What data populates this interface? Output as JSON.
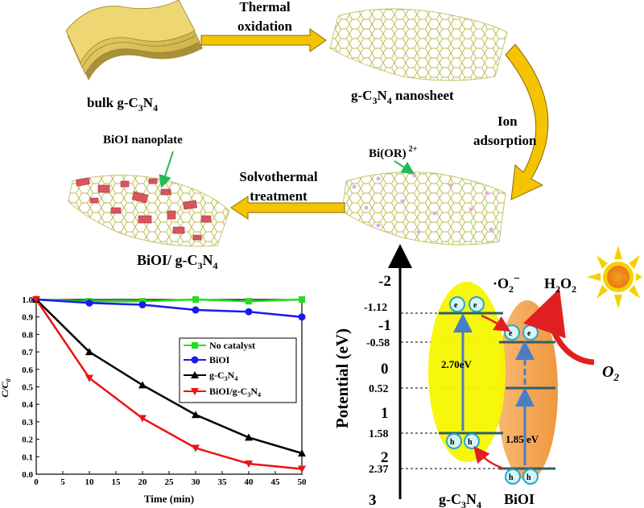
{
  "scheme": {
    "bulk_label": "bulk g-C",
    "bulk_sub1": "3",
    "bulk_mid": "N",
    "bulk_sub2": "4",
    "step1_line1": "Thermal",
    "step1_line2": "oxidation",
    "nanosheet_label": "g-C",
    "nanosheet_sub1": "3",
    "nanosheet_mid": "N",
    "nanosheet_sub2": "4",
    "nanosheet_tail": " nanosheet",
    "step2_line1": "Ion",
    "step2_line2": "adsorption",
    "ion_label": "Bi(OR)",
    "ion_charge": "2+",
    "step3_line1": "Solvothermal",
    "step3_line2": "treatment",
    "nanoplate_label": "BiOI nanoplate",
    "composite_label": "BiOI/ g-C",
    "composite_sub1": "3",
    "composite_mid": "N",
    "composite_sub2": "4"
  },
  "band_diagram": {
    "axis_label": "Potential (eV)",
    "axis_ticks": [
      "-2",
      "-1",
      "0",
      "1",
      "2",
      "3"
    ],
    "level_labels": [
      "-1.12",
      "-0.58",
      "0.52",
      "1.58",
      "2.37"
    ],
    "gcn_gap": "2.70eV",
    "bioi_gap": "1.85 eV",
    "electron": "e",
    "hole": "h",
    "superoxide": "·O",
    "superoxide_sub": "2",
    "superoxide_sup": "−",
    "peroxide": "H",
    "peroxide_sub1": "2",
    "peroxide_mid": "O",
    "peroxide_sub2": "2",
    "oxygen": "O",
    "oxygen_sub": "2",
    "gcn_name": "g-C",
    "gcn_sub1": "3",
    "gcn_mid": "N",
    "gcn_sub2": "4",
    "bioi_name": "BiOI",
    "colors": {
      "gcn": "#f7f700",
      "bioi": "#f4a455",
      "arrow": "#e02020",
      "band": "#2f5f6a",
      "circle": "#22aacc"
    }
  },
  "chart_data": {
    "type": "line",
    "xlabel": "Time (min)",
    "ylabel": "C/C",
    "ylabel_sub": "0",
    "x": [
      0,
      10,
      20,
      30,
      40,
      50
    ],
    "xlim": [
      0,
      50
    ],
    "ylim": [
      0.0,
      1.0
    ],
    "xticks": [
      "0",
      "5",
      "10",
      "15",
      "20",
      "25",
      "30",
      "35",
      "40",
      "45",
      "50"
    ],
    "yticks": [
      "0.0",
      "0.1",
      "0.2",
      "0.3",
      "0.4",
      "0.5",
      "0.6",
      "0.7",
      "0.8",
      "0.9",
      "1.0"
    ],
    "grid": false,
    "legend_position": "middle-right",
    "series": [
      {
        "name": "No catalyst",
        "values": [
          1.0,
          0.99,
          0.99,
          1.0,
          0.99,
          1.0
        ],
        "color": "#22dd22",
        "marker": "square"
      },
      {
        "name": "BiOI",
        "values": [
          1.0,
          0.98,
          0.97,
          0.94,
          0.93,
          0.9
        ],
        "color": "#1a1aee",
        "marker": "circle"
      },
      {
        "name": "g-C3N4",
        "label_main": "g-C",
        "label_s1": "3",
        "label_mid": "N",
        "label_s2": "4",
        "values": [
          1.0,
          0.7,
          0.51,
          0.34,
          0.21,
          0.12
        ],
        "color": "#000000",
        "marker": "triangle-up"
      },
      {
        "name": "BiOI/g-C3N4",
        "label_main": "BiOI/g-C",
        "label_s1": "3",
        "label_mid": "N",
        "label_s2": "4",
        "values": [
          1.0,
          0.55,
          0.32,
          0.15,
          0.06,
          0.03
        ],
        "color": "#ee1111",
        "marker": "triangle-down"
      }
    ]
  }
}
